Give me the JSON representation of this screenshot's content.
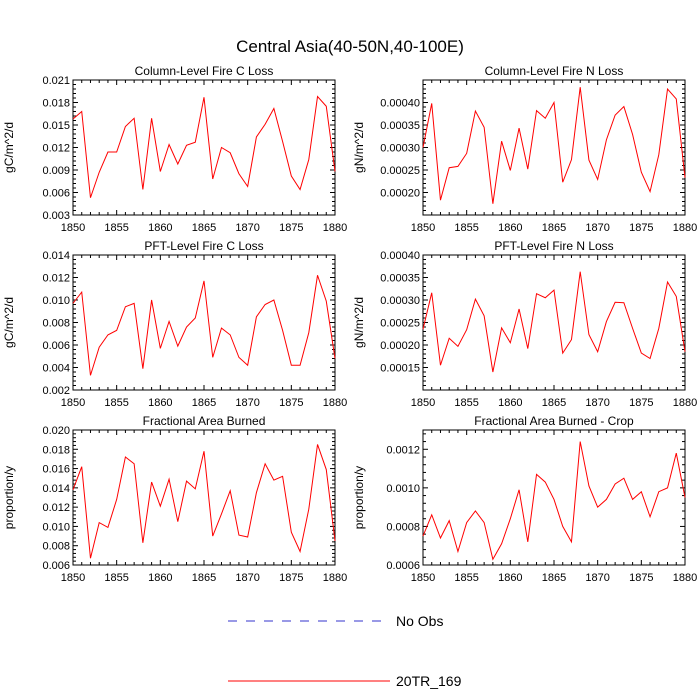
{
  "title": "Central Asia(40-50N,40-100E)",
  "legend": [
    {
      "label": "No Obs",
      "color": "#3333cc",
      "dash": "dashed"
    },
    {
      "label": "20TR_169",
      "color": "#ff0000",
      "dash": "solid"
    }
  ],
  "chart_data": [
    {
      "type": "line",
      "title": "Column-Level Fire C Loss",
      "ylabel": "gC/m^2/d",
      "xlabel": "",
      "x": [
        1850,
        1851,
        1852,
        1853,
        1854,
        1855,
        1856,
        1857,
        1858,
        1859,
        1860,
        1861,
        1862,
        1863,
        1864,
        1865,
        1866,
        1867,
        1868,
        1869,
        1870,
        1871,
        1872,
        1873,
        1874,
        1875,
        1876,
        1877,
        1878,
        1879,
        1880
      ],
      "xlim": [
        1850,
        1880
      ],
      "xticks": [
        "1850",
        "1855",
        "1860",
        "1865",
        "1870",
        "1875",
        "1880"
      ],
      "ylim": [
        0.003,
        0.021
      ],
      "yticks": [
        "0.003",
        "0.006",
        "0.009",
        "0.012",
        "0.015",
        "0.018",
        "0.021"
      ],
      "series": [
        {
          "name": "20TR_169",
          "color": "#ff0000",
          "values": [
            0.0158,
            0.0168,
            0.0053,
            0.0087,
            0.0114,
            0.0114,
            0.0148,
            0.0159,
            0.0064,
            0.0159,
            0.0088,
            0.0124,
            0.0098,
            0.0123,
            0.0127,
            0.0187,
            0.0078,
            0.012,
            0.0113,
            0.0085,
            0.0068,
            0.0134,
            0.0151,
            0.0172,
            0.0128,
            0.0082,
            0.0064,
            0.0104,
            0.0188,
            0.0175,
            0.0088
          ]
        }
      ]
    },
    {
      "type": "line",
      "title": "Column-Level Fire N Loss",
      "ylabel": "gN/m^2/d",
      "xlabel": "",
      "x": [
        1850,
        1851,
        1852,
        1853,
        1854,
        1855,
        1856,
        1857,
        1858,
        1859,
        1860,
        1861,
        1862,
        1863,
        1864,
        1865,
        1866,
        1867,
        1868,
        1869,
        1870,
        1871,
        1872,
        1873,
        1874,
        1875,
        1876,
        1877,
        1878,
        1879,
        1880
      ],
      "xlim": [
        1850,
        1880
      ],
      "xticks": [
        "1850",
        "1855",
        "1860",
        "1865",
        "1870",
        "1875",
        "1880"
      ],
      "ylim": [
        0.00015,
        0.00045
      ],
      "yticks": [
        "0.00020",
        "0.00025",
        "0.00030",
        "0.00035",
        "0.00040"
      ],
      "series": [
        {
          "name": "20TR_169",
          "color": "#ff0000",
          "values": [
            0.0003,
            0.000398,
            0.000183,
            0.000255,
            0.000258,
            0.000287,
            0.000381,
            0.000345,
            0.000175,
            0.000314,
            0.000249,
            0.000343,
            0.000252,
            0.000382,
            0.000365,
            0.0004,
            0.000223,
            0.000273,
            0.000434,
            0.000272,
            0.000229,
            0.000317,
            0.000372,
            0.000391,
            0.000329,
            0.000245,
            0.000202,
            0.000284,
            0.00043,
            0.000408,
            0.000233
          ]
        }
      ]
    },
    {
      "type": "line",
      "title": "PFT-Level Fire C Loss",
      "ylabel": "gC/m^2/d",
      "xlabel": "",
      "x": [
        1850,
        1851,
        1852,
        1853,
        1854,
        1855,
        1856,
        1857,
        1858,
        1859,
        1860,
        1861,
        1862,
        1863,
        1864,
        1865,
        1866,
        1867,
        1868,
        1869,
        1870,
        1871,
        1872,
        1873,
        1874,
        1875,
        1876,
        1877,
        1878,
        1879,
        1880
      ],
      "xlim": [
        1850,
        1880
      ],
      "xticks": [
        "1850",
        "1855",
        "1860",
        "1865",
        "1870",
        "1875",
        "1880"
      ],
      "ylim": [
        0.002,
        0.014
      ],
      "yticks": [
        "0.002",
        "0.004",
        "0.006",
        "0.008",
        "0.010",
        "0.012",
        "0.014"
      ],
      "series": [
        {
          "name": "20TR_169",
          "color": "#ff0000",
          "values": [
            0.0097,
            0.0107,
            0.0033,
            0.0058,
            0.0069,
            0.0073,
            0.0094,
            0.0097,
            0.0039,
            0.01,
            0.0057,
            0.0081,
            0.0059,
            0.0076,
            0.0084,
            0.0117,
            0.0049,
            0.0075,
            0.0069,
            0.0049,
            0.0042,
            0.0085,
            0.0096,
            0.01,
            0.0073,
            0.0042,
            0.0042,
            0.0071,
            0.0122,
            0.0099,
            0.0048
          ]
        }
      ]
    },
    {
      "type": "line",
      "title": "PFT-Level Fire N Loss",
      "ylabel": "gN/m^2/d",
      "xlabel": "",
      "x": [
        1850,
        1851,
        1852,
        1853,
        1854,
        1855,
        1856,
        1857,
        1858,
        1859,
        1860,
        1861,
        1862,
        1863,
        1864,
        1865,
        1866,
        1867,
        1868,
        1869,
        1870,
        1871,
        1872,
        1873,
        1874,
        1875,
        1876,
        1877,
        1878,
        1879,
        1880
      ],
      "xlim": [
        1850,
        1880
      ],
      "xticks": [
        "1850",
        "1855",
        "1860",
        "1865",
        "1870",
        "1875",
        "1880"
      ],
      "ylim": [
        0.0001,
        0.0004
      ],
      "yticks": [
        "0.00015",
        "0.00020",
        "0.00025",
        "0.00030",
        "0.00035",
        "0.00040"
      ],
      "series": [
        {
          "name": "20TR_169",
          "color": "#ff0000",
          "values": [
            0.000235,
            0.000316,
            0.000155,
            0.000215,
            0.000197,
            0.000234,
            0.000302,
            0.000265,
            0.00014,
            0.000238,
            0.000205,
            0.00028,
            0.000192,
            0.000314,
            0.000305,
            0.000322,
            0.000182,
            0.000212,
            0.000363,
            0.000223,
            0.000185,
            0.000252,
            0.000295,
            0.000294,
            0.000237,
            0.000182,
            0.00017,
            0.000237,
            0.00034,
            0.000308,
            0.000185
          ]
        }
      ]
    },
    {
      "type": "line",
      "title": "Fractional Area Burned",
      "ylabel": "proportion/y",
      "xlabel": "",
      "x": [
        1850,
        1851,
        1852,
        1853,
        1854,
        1855,
        1856,
        1857,
        1858,
        1859,
        1860,
        1861,
        1862,
        1863,
        1864,
        1865,
        1866,
        1867,
        1868,
        1869,
        1870,
        1871,
        1872,
        1873,
        1874,
        1875,
        1876,
        1877,
        1878,
        1879,
        1880
      ],
      "xlim": [
        1850,
        1880
      ],
      "xticks": [
        "1850",
        "1855",
        "1860",
        "1865",
        "1870",
        "1875",
        "1880"
      ],
      "ylim": [
        0.006,
        0.02
      ],
      "yticks": [
        "0.006",
        "0.008",
        "0.010",
        "0.012",
        "0.014",
        "0.016",
        "0.018",
        "0.020"
      ],
      "series": [
        {
          "name": "20TR_169",
          "color": "#ff0000",
          "values": [
            0.0138,
            0.0162,
            0.0067,
            0.0104,
            0.0099,
            0.0128,
            0.0172,
            0.0165,
            0.0083,
            0.0146,
            0.0121,
            0.0149,
            0.0105,
            0.0147,
            0.0139,
            0.0178,
            0.009,
            0.0113,
            0.0137,
            0.0091,
            0.0089,
            0.0135,
            0.0165,
            0.0148,
            0.0152,
            0.0094,
            0.0074,
            0.0118,
            0.0185,
            0.0159,
            0.0085
          ]
        }
      ]
    },
    {
      "type": "line",
      "title": "Fractional Area Burned - Crop",
      "ylabel": "proportion/y",
      "xlabel": "",
      "x": [
        1850,
        1851,
        1852,
        1853,
        1854,
        1855,
        1856,
        1857,
        1858,
        1859,
        1860,
        1861,
        1862,
        1863,
        1864,
        1865,
        1866,
        1867,
        1868,
        1869,
        1870,
        1871,
        1872,
        1873,
        1874,
        1875,
        1876,
        1877,
        1878,
        1879,
        1880
      ],
      "xlim": [
        1850,
        1880
      ],
      "xticks": [
        "1850",
        "1855",
        "1860",
        "1865",
        "1870",
        "1875",
        "1880"
      ],
      "ylim": [
        0.0006,
        0.0013
      ],
      "yticks": [
        "0.0006",
        "0.0008",
        "0.0010",
        "0.0012"
      ],
      "series": [
        {
          "name": "20TR_169",
          "color": "#ff0000",
          "values": [
            0.00075,
            0.00086,
            0.00074,
            0.00083,
            0.00067,
            0.00082,
            0.00088,
            0.00082,
            0.00063,
            0.00071,
            0.00084,
            0.00099,
            0.00072,
            0.00107,
            0.00103,
            0.00094,
            0.0008,
            0.00072,
            0.00124,
            0.00101,
            0.0009,
            0.00094,
            0.00102,
            0.00105,
            0.00094,
            0.00098,
            0.00085,
            0.00098,
            0.001,
            0.00118,
            0.00095
          ]
        }
      ]
    }
  ]
}
